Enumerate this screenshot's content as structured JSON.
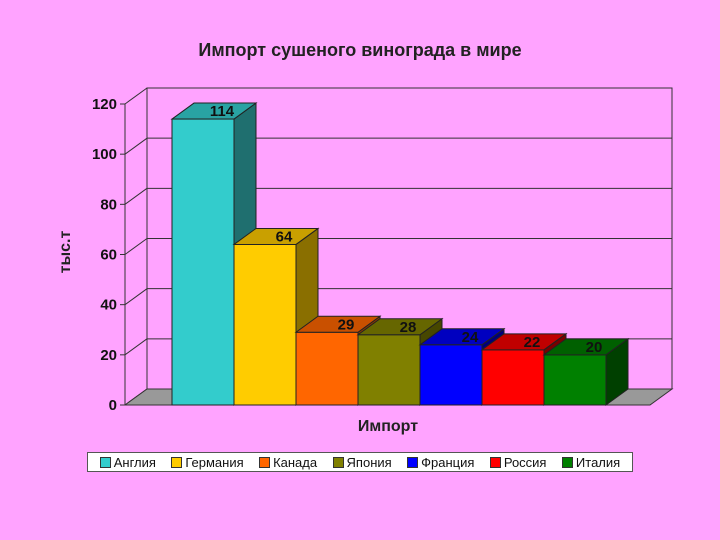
{
  "chart_data": {
    "type": "bar",
    "title": "Импорт сушеного винограда в мире",
    "xlabel": "Импорт",
    "ylabel": "тыс.т",
    "ylim": [
      0,
      120
    ],
    "yticks": [
      "0",
      "20",
      "40",
      "60",
      "80",
      "100",
      "120"
    ],
    "grid": true,
    "legend_position": "bottom",
    "categories": [
      "Англия",
      "Германия",
      "Канада",
      "Япония",
      "Франция",
      "Россия",
      "Италия"
    ],
    "values": [
      114,
      64,
      29,
      28,
      24,
      22,
      20
    ],
    "colors": [
      "#33cccc",
      "#ffcc00",
      "#ff6600",
      "#808000",
      "#0000ff",
      "#ff0000",
      "#008000"
    ],
    "side_colors": [
      "#1f6f6f",
      "#8a6f00",
      "#8a3700",
      "#474700",
      "#00007a",
      "#7a0000",
      "#004000"
    ],
    "top_colors": [
      "#29a3a3",
      "#c9a000",
      "#c95000",
      "#666600",
      "#0000c0",
      "#c00000",
      "#006000"
    ]
  }
}
